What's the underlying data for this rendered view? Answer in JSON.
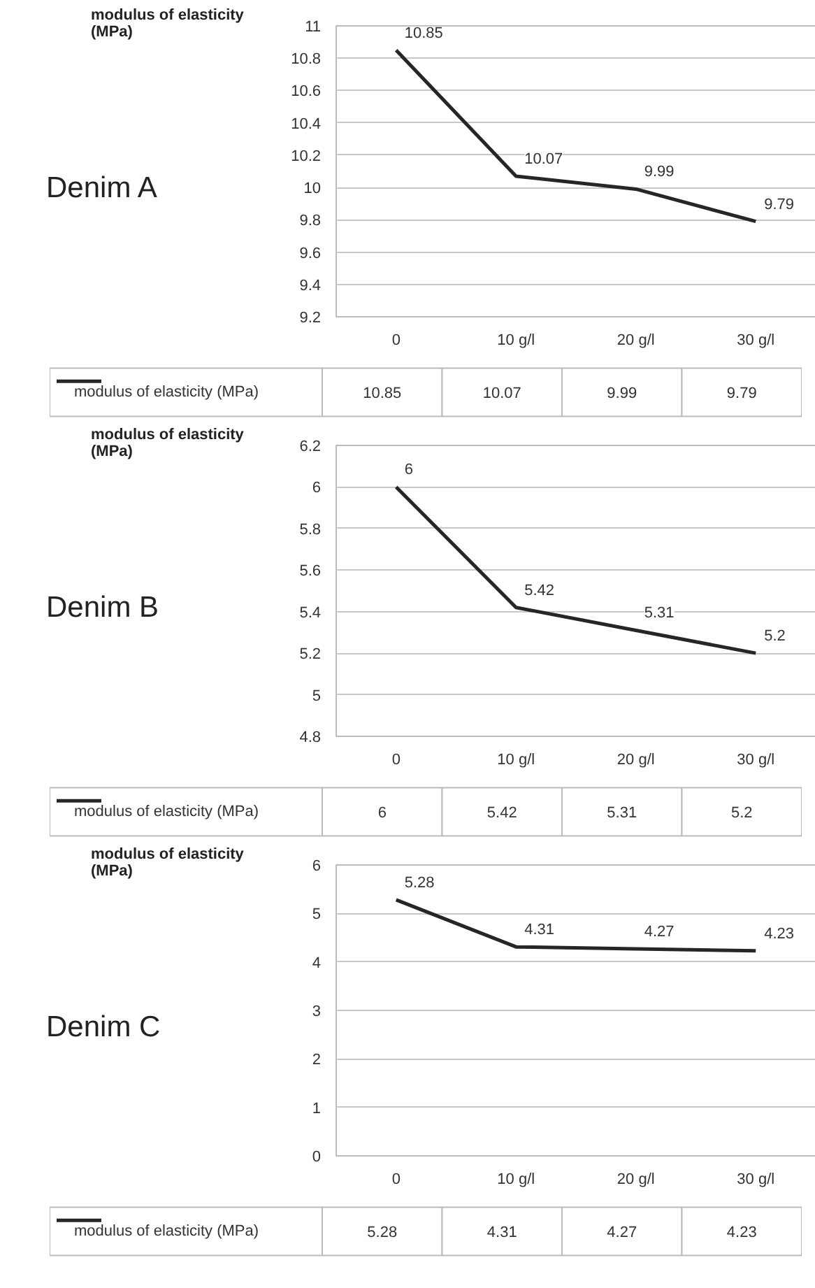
{
  "chart_data": [
    {
      "type": "line",
      "title": "Denim A",
      "ylabel": "modulus of elasticity (MPa)",
      "categories": [
        "0",
        "10 g/l",
        "20 g/l",
        "30 g/l"
      ],
      "series": [
        {
          "name": "modulus of elasticity (MPa)",
          "color": "#262626",
          "values": [
            10.85,
            10.07,
            9.99,
            9.79
          ],
          "value_labels": [
            "10.85",
            "10.07",
            "9.99",
            "9.79"
          ]
        }
      ],
      "ylim": [
        9.2,
        11
      ],
      "yticks": [
        9.2,
        9.4,
        9.6,
        9.8,
        10,
        10.2,
        10.4,
        10.6,
        10.8,
        11
      ],
      "grid": "y",
      "legend": "bottom",
      "annotations": [
        "10.85",
        "10.07",
        "9.99",
        "9.79"
      ]
    },
    {
      "type": "line",
      "title": "Denim B",
      "ylabel": "modulus of elasticity (MPa)",
      "categories": [
        "0",
        "10 g/l",
        "20 g/l",
        "30 g/l"
      ],
      "series": [
        {
          "name": "modulus of elasticity (MPa)",
          "color": "#262626",
          "values": [
            6,
            5.42,
            5.31,
            5.2
          ],
          "value_labels": [
            "6",
            "5.42",
            "5.31",
            "5.2"
          ]
        }
      ],
      "ylim": [
        4.8,
        6.2
      ],
      "yticks": [
        4.8,
        5,
        5.2,
        5.4,
        5.6,
        5.8,
        6,
        6.2
      ],
      "grid": "y",
      "legend": "bottom",
      "annotations": [
        "6",
        "5.42",
        "5.31",
        "5.2"
      ]
    },
    {
      "type": "line",
      "title": "Denim C",
      "ylabel": "modulus of elasticity (MPa)",
      "categories": [
        "0",
        "10 g/l",
        "20 g/l",
        "30 g/l"
      ],
      "series": [
        {
          "name": "modulus of elasticity (MPa)",
          "color": "#262626",
          "values": [
            5.28,
            4.31,
            4.27,
            4.23
          ],
          "value_labels": [
            "5.28",
            "4.31",
            "4.27",
            "4.23"
          ]
        }
      ],
      "ylim": [
        0,
        6
      ],
      "yticks": [
        0,
        1,
        2,
        3,
        4,
        5,
        6
      ],
      "grid": "y",
      "legend": "bottom",
      "annotations": [
        "5.28",
        "4.31",
        "4.27",
        "4.23"
      ]
    }
  ]
}
